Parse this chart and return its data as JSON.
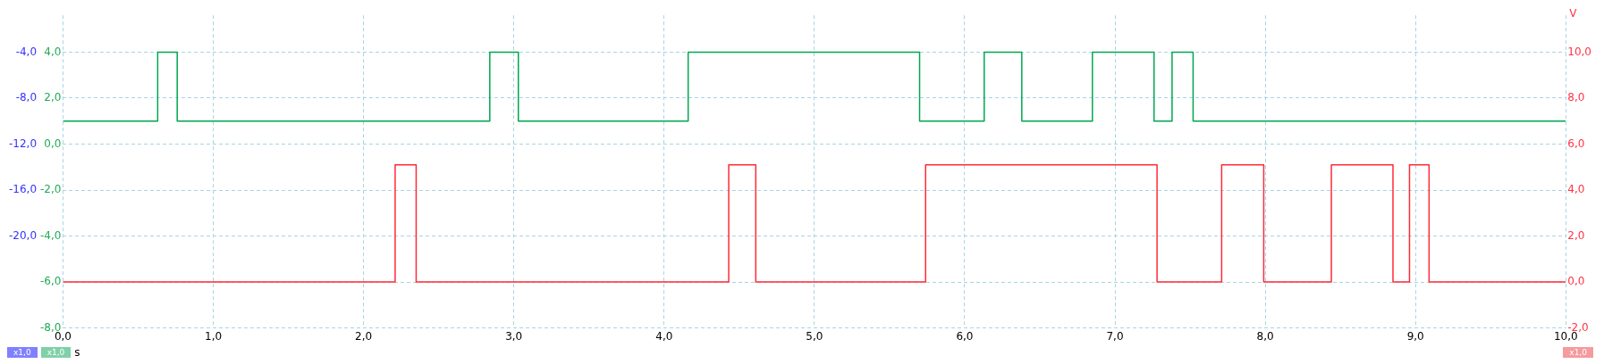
{
  "chart_data": {
    "type": "line",
    "xlabel": "s",
    "y2label": "V",
    "xlim": [
      0,
      10
    ],
    "xticks": [
      {
        "value": 0,
        "label": "0,0"
      },
      {
        "value": 1,
        "label": "1,0"
      },
      {
        "value": 2,
        "label": "2,0"
      },
      {
        "value": 3,
        "label": "3,0"
      },
      {
        "value": 4,
        "label": "4,0"
      },
      {
        "value": 5,
        "label": "5,0"
      },
      {
        "value": 6,
        "label": "6,0"
      },
      {
        "value": 7,
        "label": "7,0"
      },
      {
        "value": 8,
        "label": "8,0"
      },
      {
        "value": 9,
        "label": "9,0"
      },
      {
        "value": 10,
        "label": "10,0"
      }
    ],
    "ylim": [
      -8,
      5.6
    ],
    "yticks": [
      {
        "value": 4,
        "label": "4,0"
      },
      {
        "value": 2,
        "label": "2,0"
      },
      {
        "value": 0,
        "label": "0,0"
      },
      {
        "value": -2,
        "label": "-2,0"
      },
      {
        "value": -4,
        "label": "-4,0"
      },
      {
        "value": -6,
        "label": "-6,0"
      },
      {
        "value": -8,
        "label": "-8,0"
      }
    ],
    "y2lim": [
      -2,
      11.6
    ],
    "y2ticks": [
      {
        "value": 10,
        "label": "10,0"
      },
      {
        "value": 8,
        "label": "8,0"
      },
      {
        "value": 6,
        "label": "6,0"
      },
      {
        "value": 4,
        "label": "4,0"
      },
      {
        "value": 2,
        "label": "2,0"
      },
      {
        "value": 0,
        "label": "0,0"
      },
      {
        "value": -2,
        "label": "-2,0"
      }
    ],
    "y3lim": [
      -28,
      -0.8
    ],
    "y3ticks": [
      {
        "value": -4,
        "label": "-4,0"
      },
      {
        "value": -8,
        "label": "-8,0"
      },
      {
        "value": -12,
        "label": "-12,0"
      },
      {
        "value": -16,
        "label": "-16,0"
      },
      {
        "value": -20,
        "label": "-20,0"
      }
    ],
    "grid": true,
    "legend": false,
    "marker": "none",
    "line_style": "solid",
    "series": [
      {
        "color": "#00a650",
        "axis": "y",
        "x": [
          0,
          0.63,
          0.63,
          0.76,
          0.76,
          2.84,
          2.84,
          3.03,
          3.03,
          4.16,
          4.16,
          5.7,
          5.7,
          6.13,
          6.13,
          6.38,
          6.38,
          6.85,
          6.85,
          7.26,
          7.26,
          7.38,
          7.38,
          7.52,
          7.52,
          10
        ],
        "values": [
          1,
          1,
          4,
          4,
          1,
          1,
          4,
          4,
          1,
          1,
          4,
          4,
          1,
          1,
          4,
          4,
          1,
          1,
          4,
          4,
          1,
          1,
          4,
          4,
          1,
          1
        ]
      },
      {
        "color": "#ff2a36",
        "axis": "y2",
        "x": [
          0,
          2.21,
          2.21,
          2.35,
          2.35,
          4.43,
          4.43,
          4.61,
          4.61,
          5.74,
          5.74,
          7.28,
          7.28,
          7.71,
          7.71,
          7.99,
          7.99,
          8.44,
          8.44,
          8.85,
          8.85,
          8.96,
          8.96,
          9.09,
          9.09,
          10
        ],
        "values": [
          0,
          0,
          5.1,
          5.1,
          0,
          0,
          5.1,
          5.1,
          0,
          0,
          5.1,
          5.1,
          0,
          0,
          5.1,
          5.1,
          0,
          0,
          5.1,
          5.1,
          0,
          0,
          5.1,
          5.1,
          0,
          0
        ]
      }
    ],
    "annotations": [
      "x1,0",
      "x1,0",
      "x1,0"
    ]
  }
}
